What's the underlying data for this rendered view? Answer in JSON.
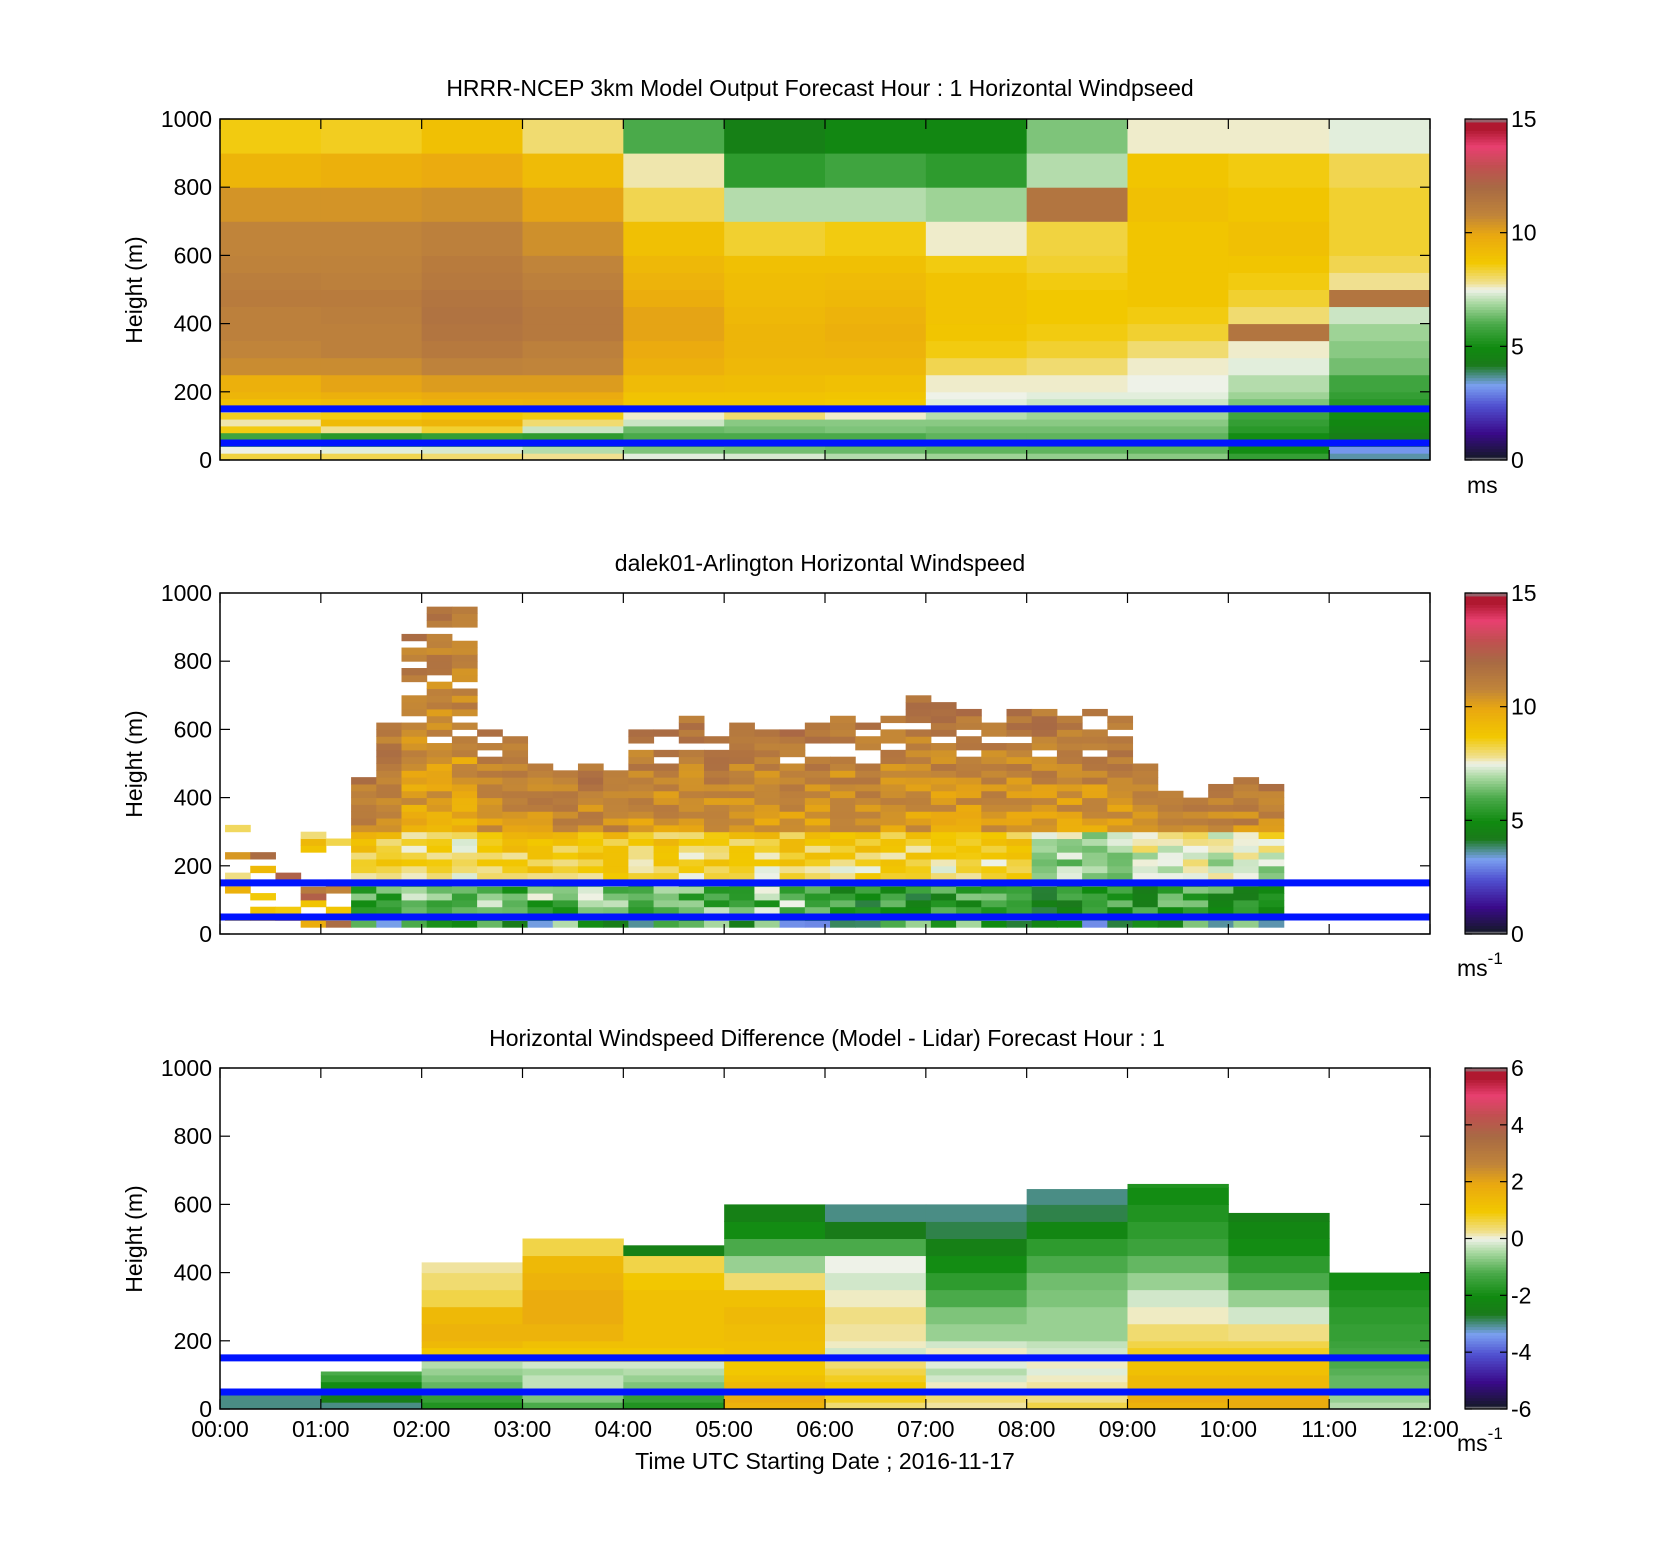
{
  "figure": {
    "xlabel": "Time UTC  Starting Date ; 2016-11-17",
    "x_tick_labels": [
      "00:00",
      "01:00",
      "02:00",
      "03:00",
      "04:00",
      "05:00",
      "06:00",
      "07:00",
      "08:00",
      "09:00",
      "10:00",
      "11:00",
      "12:00"
    ],
    "band_lines_color": "#0014ff",
    "colors": {
      "scale": [
        "#181830",
        "#3a0a8a",
        "#6a7af0",
        "#127a12",
        "#1a8a1a",
        "#4aaa4a",
        "#a8d8a0",
        "#eef2e8",
        "#f0e090",
        "#f2c800",
        "#eaa810",
        "#c0843a",
        "#a86a44",
        "#e84070",
        "#b01830",
        "#8a8a8a"
      ]
    }
  },
  "chart_data": [
    {
      "type": "heatmap",
      "title": "HRRR-NCEP 3km Model Output   Forecast Hour : 1 Horizontal Windpseed",
      "ylabel": "Height (m)",
      "y_tick_labels": [
        "0",
        "200",
        "400",
        "600",
        "800",
        "1000"
      ],
      "ylim": [
        0,
        1000
      ],
      "xlim_hours": [
        0,
        12
      ],
      "colorbar": {
        "ticks": [
          "0",
          "5",
          "10",
          "15"
        ],
        "range": [
          0,
          15
        ],
        "unit": "ms",
        "unit_sup": ""
      },
      "band_lines_m": [
        150,
        50
      ],
      "column_hours": [
        0,
        1,
        2,
        3,
        4,
        5,
        6,
        7,
        8,
        9,
        10,
        11
      ],
      "row_edges_m": [
        0,
        20,
        40,
        60,
        80,
        100,
        120,
        140,
        160,
        180,
        200,
        250,
        300,
        350,
        400,
        450,
        500,
        550,
        600,
        700,
        800,
        900,
        1000
      ],
      "values": [
        [
          8.3,
          7.5,
          5.2,
          5.8,
          8.6,
          7.7,
          8.5,
          7.6,
          9.0,
          9.4,
          9.6,
          10.6,
          10.8,
          11.0,
          11.0,
          11.2,
          11.1,
          10.9,
          10.8,
          10.4,
          9.4,
          8.6
        ],
        [
          8.2,
          7.4,
          5.0,
          5.4,
          7.8,
          9.2,
          8.6,
          8.3,
          9.2,
          9.6,
          10.0,
          10.6,
          11.0,
          11.0,
          11.1,
          11.2,
          11.0,
          10.9,
          10.8,
          10.4,
          9.6,
          8.5
        ],
        [
          8.0,
          7.3,
          5.2,
          5.6,
          8.4,
          9.4,
          8.8,
          8.7,
          9.5,
          9.8,
          10.2,
          10.9,
          11.3,
          11.5,
          11.6,
          11.5,
          11.3,
          11.2,
          11.0,
          10.5,
          9.8,
          9.0
        ],
        [
          7.8,
          7.0,
          5.0,
          5.5,
          7.2,
          8.0,
          8.6,
          9.4,
          9.6,
          9.8,
          10.2,
          10.8,
          11.0,
          11.3,
          11.3,
          11.2,
          11.0,
          10.8,
          10.5,
          10.0,
          9.2,
          8.0
        ],
        [
          7.4,
          6.5,
          5.4,
          6.0,
          6.3,
          7.2,
          7.6,
          8.0,
          8.8,
          8.9,
          9.2,
          9.6,
          9.8,
          10.0,
          10.0,
          9.7,
          9.5,
          9.3,
          9.0,
          8.2,
          7.7,
          6.0
        ],
        [
          7.3,
          6.4,
          5.8,
          6.0,
          6.4,
          6.6,
          8.0,
          8.5,
          8.8,
          8.9,
          9.1,
          9.3,
          9.4,
          9.4,
          9.3,
          9.2,
          9.1,
          9.0,
          8.4,
          7.0,
          5.5,
          4.5
        ],
        [
          7.0,
          6.3,
          5.6,
          6.0,
          6.5,
          6.6,
          7.6,
          8.0,
          8.7,
          8.8,
          9.0,
          9.3,
          9.5,
          9.6,
          9.5,
          9.3,
          9.2,
          9.0,
          8.6,
          7.0,
          5.8,
          4.8
        ],
        [
          6.8,
          6.2,
          6.0,
          6.2,
          6.4,
          6.6,
          7.0,
          7.2,
          7.4,
          7.5,
          7.6,
          8.2,
          8.6,
          8.8,
          8.9,
          8.9,
          8.9,
          8.6,
          7.6,
          6.8,
          5.5,
          4.8
        ],
        [
          6.7,
          6.2,
          5.8,
          6.2,
          6.4,
          6.6,
          6.8,
          7.0,
          7.2,
          7.4,
          7.6,
          8.0,
          8.4,
          8.6,
          8.7,
          8.7,
          8.6,
          8.4,
          8.3,
          11.5,
          7.0,
          6.5
        ],
        [
          6.6,
          6.2,
          5.8,
          6.2,
          6.4,
          6.6,
          6.8,
          7.0,
          7.2,
          7.4,
          7.5,
          7.6,
          8.0,
          8.4,
          8.6,
          8.8,
          8.8,
          8.8,
          8.8,
          9.0,
          8.8,
          7.6
        ],
        [
          5.6,
          5.0,
          4.6,
          5.0,
          5.4,
          5.6,
          5.8,
          6.2,
          6.5,
          6.8,
          7.0,
          7.4,
          7.6,
          11.5,
          8.0,
          8.4,
          8.6,
          8.8,
          9.0,
          8.8,
          8.6,
          7.6
        ],
        [
          3.6,
          3.2,
          4.2,
          4.4,
          4.6,
          4.8,
          5.0,
          5.2,
          5.4,
          5.6,
          5.8,
          6.4,
          6.6,
          6.8,
          7.2,
          11.5,
          7.8,
          8.2,
          8.4,
          8.4,
          8.2,
          7.4
        ]
      ]
    },
    {
      "type": "heatmap",
      "title": "dalek01-Arlington  Horizontal Windspeed",
      "ylabel": "Height (m)",
      "y_tick_labels": [
        "0",
        "200",
        "400",
        "600",
        "800",
        "1000"
      ],
      "ylim": [
        0,
        1000
      ],
      "xlim_hours": [
        0,
        12
      ],
      "colorbar": {
        "ticks": [
          "0",
          "5",
          "10",
          "15"
        ],
        "range": [
          0,
          15
        ],
        "unit": "ms",
        "unit_sup": "-1"
      },
      "band_lines_m": [
        150,
        50
      ],
      "tops_m": [
        310,
        250,
        260,
        300,
        440,
        460,
        610,
        900,
        980,
        960,
        590,
        580,
        490,
        480,
        490,
        480,
        590,
        590,
        640,
        580,
        620,
        610,
        600,
        610,
        640,
        620,
        640,
        700,
        670,
        660,
        620,
        650,
        650,
        640,
        660,
        640,
        500,
        420,
        400,
        440,
        450,
        430
      ],
      "sample_step_hours": 0.25
    },
    {
      "type": "heatmap",
      "title": "Horizontal Windspeed Difference (Model - Lidar) Forecast Hour : 1",
      "ylabel": "Height (m)",
      "y_tick_labels": [
        "0",
        "200",
        "400",
        "600",
        "800",
        "1000"
      ],
      "ylim": [
        0,
        1000
      ],
      "xlim_hours": [
        0,
        12
      ],
      "colorbar": {
        "ticks": [
          "-6",
          "-4",
          "-2",
          "0",
          "2",
          "4",
          "6"
        ],
        "range": [
          -6,
          6
        ],
        "unit": "ms",
        "unit_sup": "-1"
      },
      "band_lines_m": [
        150,
        50
      ],
      "column_hours": [
        0,
        1,
        2,
        3,
        4,
        5,
        6,
        7,
        8,
        9,
        10,
        11
      ],
      "row_edges_m": [
        0,
        20,
        40,
        60,
        80,
        100,
        120,
        140,
        160,
        180,
        200,
        250,
        300,
        350,
        400,
        450,
        500,
        550,
        600,
        650,
        700
      ],
      "tops_m": [
        60,
        110,
        430,
        500,
        480,
        600,
        600,
        600,
        645,
        660,
        575,
        400
      ],
      "values": [
        [
          -3.0,
          -3.0,
          -3.0
        ],
        [
          -3.0,
          -2.5,
          -2.0,
          -2.0,
          -1.5,
          -1.2
        ],
        [
          -1.8,
          -1.5,
          -1.2,
          -1.0,
          -0.8,
          -0.6,
          -0.4,
          0.6,
          1.0,
          1.4,
          1.6,
          1.4,
          0.6,
          0.4,
          0.2,
          0.2,
          0.3,
          0.2,
          0.2,
          0.2,
          0.2
        ],
        [
          -1.2,
          -0.8,
          -0.5,
          -0.3,
          -0.3,
          -0.5,
          -0.2,
          0.8,
          1.0,
          1.2,
          1.6,
          1.8,
          1.8,
          1.6,
          1.4,
          0.6,
          0.2,
          0.2,
          0.2,
          0.2,
          0.2
        ],
        [
          -1.8,
          -1.5,
          -1.2,
          -0.8,
          -0.6,
          -0.4,
          -0.2,
          0.8,
          1.0,
          1.2,
          1.2,
          1.2,
          1.2,
          1.0,
          0.6,
          -2.4,
          0.2,
          0.2,
          0.2,
          0.2,
          0.2
        ],
        [
          1.6,
          1.8,
          1.6,
          1.4,
          1.2,
          1.0,
          1.0,
          1.1,
          1.2,
          1.2,
          1.3,
          1.4,
          1.2,
          0.4,
          -0.6,
          -1.2,
          -2.0,
          -2.4,
          -2.6,
          -2.6,
          -2.6
        ],
        [
          0.4,
          0.8,
          1.0,
          1.0,
          0.8,
          0.6,
          0.4,
          0.2,
          -0.2,
          0.1,
          0.2,
          0.3,
          0.1,
          -0.2,
          0.0,
          -1.2,
          -2.6,
          -3.0,
          -4.6,
          -4.6,
          -4.6
        ],
        [
          0.2,
          0.4,
          0.3,
          0.1,
          -0.2,
          -0.4,
          -0.1,
          0.2,
          0.1,
          -0.2,
          -0.6,
          -0.8,
          -1.2,
          -1.6,
          -2.0,
          -2.4,
          -2.8,
          -3.0,
          -3.0,
          -3.0,
          -3.0
        ],
        [
          0.6,
          0.3,
          0.4,
          0.2,
          0.1,
          -0.1,
          0.1,
          0.0,
          -0.2,
          -0.3,
          -0.6,
          -0.6,
          -0.8,
          -0.9,
          -1.2,
          -1.6,
          -2.2,
          -2.8,
          -3.0,
          -3.2,
          -3.2
        ],
        [
          1.6,
          1.8,
          1.6,
          1.4,
          1.4,
          1.2,
          1.2,
          1.0,
          0.8,
          0.6,
          0.4,
          0.1,
          -0.2,
          -0.6,
          -1.0,
          -1.4,
          -1.6,
          -1.8,
          -2.0,
          -1.8,
          -1.8
        ],
        [
          1.8,
          1.8,
          1.6,
          1.4,
          1.4,
          1.2,
          1.2,
          1.0,
          0.8,
          0.6,
          0.3,
          -0.2,
          -0.6,
          -1.2,
          -1.6,
          -2.0,
          -2.2,
          -2.4,
          -2.4,
          -2.4,
          -2.4
        ],
        [
          -0.4,
          -0.6,
          -0.8,
          -1.0,
          -1.0,
          -1.1,
          -1.2,
          -1.2,
          -1.3,
          -1.4,
          -1.5,
          -1.6,
          -1.8,
          -2.0,
          -2.0,
          -2.0,
          -2.0,
          -2.0,
          -2.0,
          -2.0,
          -2.0
        ]
      ]
    }
  ]
}
